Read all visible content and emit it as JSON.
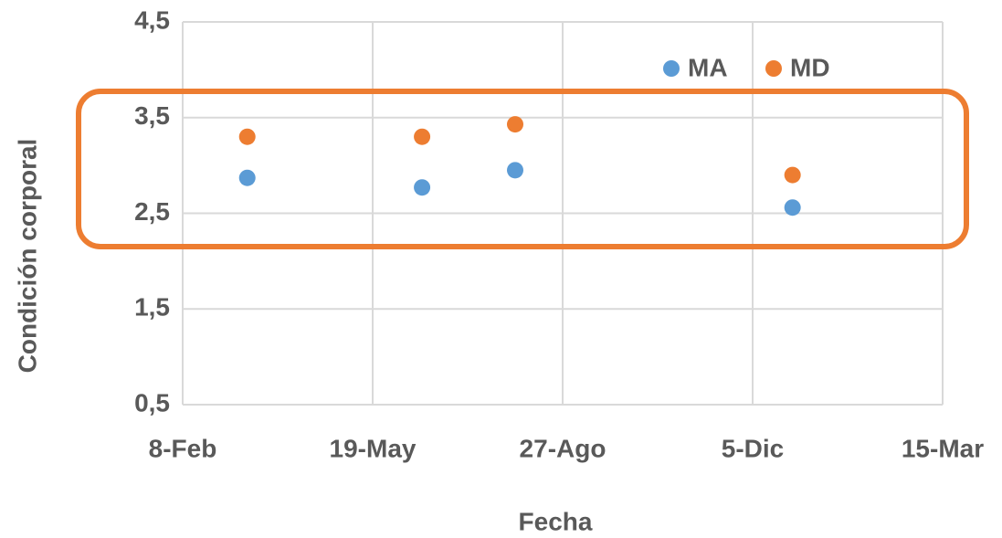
{
  "chart_data": {
    "type": "scatter",
    "x_label": "Fecha",
    "y_label": "Condición corporal",
    "xlim": [
      0,
      400
    ],
    "xticks": [
      {
        "value": 0,
        "label": "8-Feb"
      },
      {
        "value": 100,
        "label": "19-May"
      },
      {
        "value": 200,
        "label": "27-Ago"
      },
      {
        "value": 300,
        "label": "5-Dic"
      },
      {
        "value": 400,
        "label": "15-Mar"
      }
    ],
    "ylim": [
      0.5,
      4.5
    ],
    "yticks": [
      {
        "value": 0.5,
        "label": "0,5"
      },
      {
        "value": 1.5,
        "label": "1,5"
      },
      {
        "value": 2.5,
        "label": "2,5"
      },
      {
        "value": 3.5,
        "label": "3,5"
      },
      {
        "value": 4.5,
        "label": "4,5"
      }
    ],
    "grid": true,
    "legend": "top-right",
    "series": [
      {
        "name": "MA",
        "color": "#5b9bd5",
        "x": [
          34,
          126,
          175,
          321
        ],
        "values": [
          2.87,
          2.77,
          2.95,
          2.56
        ]
      },
      {
        "name": "MD",
        "color": "#ed7d31",
        "x": [
          34,
          126,
          175,
          321
        ],
        "values": [
          3.3,
          3.3,
          3.43,
          2.9
        ]
      }
    ]
  }
}
